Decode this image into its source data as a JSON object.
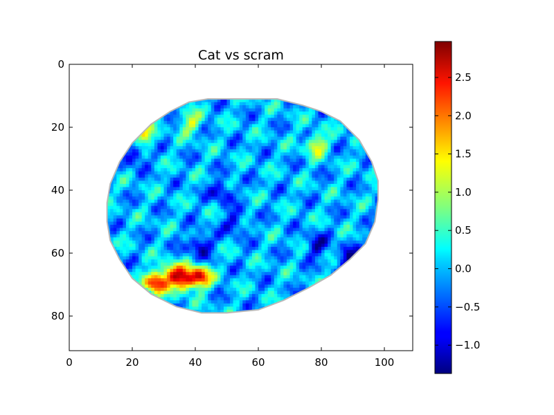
{
  "chart_data": {
    "type": "heatmap",
    "title": "Cat vs scram",
    "xlabel": "",
    "ylabel": "",
    "xlim": [
      0,
      109
    ],
    "ylim": [
      91,
      0
    ],
    "x_ticks": [
      "0",
      "20",
      "40",
      "60",
      "80",
      "100"
    ],
    "y_ticks": [
      "0",
      "20",
      "40",
      "60",
      "80"
    ],
    "grid": false,
    "colormap": "jet",
    "colorbar": {
      "range": [
        -1.37,
        2.97
      ],
      "ticks": [
        "−1.0",
        "−0.5",
        "0.0",
        "0.5",
        "1.0",
        "1.5",
        "2.0",
        "2.5"
      ]
    },
    "mask_outline": [
      [
        44,
        11
      ],
      [
        66,
        11
      ],
      [
        74,
        13
      ],
      [
        80,
        15
      ],
      [
        86,
        18
      ],
      [
        92,
        24
      ],
      [
        96,
        31
      ],
      [
        98,
        37
      ],
      [
        98,
        43
      ],
      [
        97,
        50
      ],
      [
        94,
        57
      ],
      [
        89,
        62
      ],
      [
        83,
        67
      ],
      [
        76,
        71
      ],
      [
        68,
        75
      ],
      [
        60,
        78
      ],
      [
        50,
        79
      ],
      [
        42,
        79
      ],
      [
        34,
        77
      ],
      [
        26,
        73
      ],
      [
        20,
        68
      ],
      [
        16,
        62
      ],
      [
        13,
        56
      ],
      [
        12,
        50
      ],
      [
        12,
        44
      ],
      [
        13,
        38
      ],
      [
        16,
        31
      ],
      [
        20,
        25
      ],
      [
        26,
        19
      ],
      [
        32,
        15
      ],
      [
        38,
        12
      ]
    ],
    "hotspots": [
      {
        "x": 27,
        "y": 69,
        "value": 2.7
      },
      {
        "x": 36,
        "y": 68,
        "value": 2.4
      },
      {
        "x": 41,
        "y": 67,
        "value": 2.5
      },
      {
        "x": 23,
        "y": 22,
        "value": 1.4
      },
      {
        "x": 78,
        "y": 25,
        "value": 1.4
      },
      {
        "x": 38,
        "y": 18,
        "value": 1.2
      },
      {
        "x": 32,
        "y": 66,
        "value": 1.8
      },
      {
        "x": 20,
        "y": 28,
        "value": -1.0
      },
      {
        "x": 41,
        "y": 57,
        "value": -1.1
      },
      {
        "x": 48,
        "y": 40,
        "value": -0.9
      },
      {
        "x": 88,
        "y": 61,
        "value": -1.0
      },
      {
        "x": 52,
        "y": 50,
        "value": -0.8
      },
      {
        "x": 78,
        "y": 57,
        "value": -0.9
      }
    ]
  }
}
